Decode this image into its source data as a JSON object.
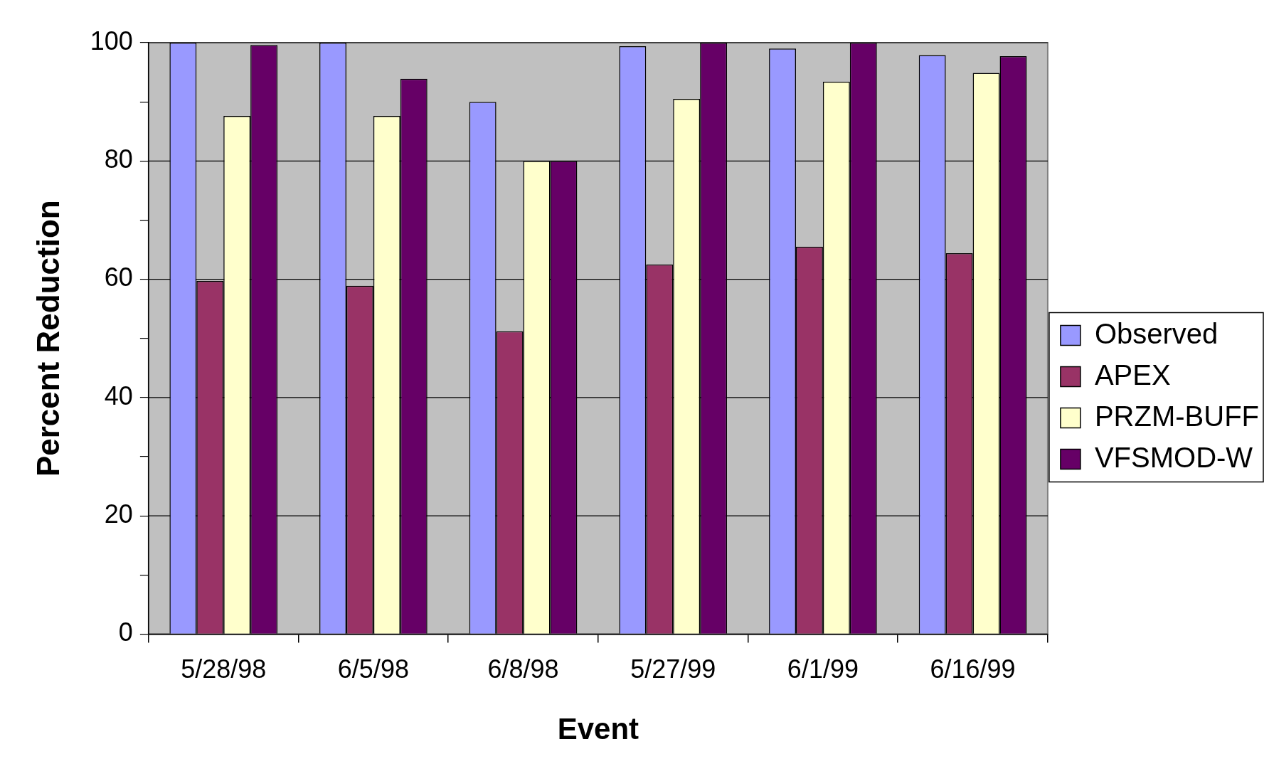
{
  "chart_data": {
    "type": "bar",
    "xlabel": "Event",
    "ylabel": "Percent Reduction",
    "categories": [
      "5/28/98",
      "6/5/98",
      "6/8/98",
      "5/27/99",
      "6/1/99",
      "6/16/99"
    ],
    "series": [
      {
        "name": "Observed",
        "color": "#9999ff",
        "values": [
          100,
          100,
          90,
          99.4,
          99,
          97.9
        ]
      },
      {
        "name": "APEX",
        "color": "#993366",
        "values": [
          59.7,
          58.9,
          51.2,
          62.5,
          65.5,
          64.4
        ]
      },
      {
        "name": "PRZM-BUFF",
        "color": "#ffffcc",
        "values": [
          87.6,
          87.6,
          80,
          90.5,
          93.4,
          94.9
        ]
      },
      {
        "name": "VFSMOD-W",
        "color": "#660066",
        "values": [
          99.6,
          93.9,
          80,
          100,
          100,
          97.7
        ]
      }
    ],
    "ylim": [
      0,
      100
    ],
    "yticks": [
      0,
      {
        "value": 10,
        "label": null
      },
      20,
      {
        "value": 30,
        "label": null
      },
      40,
      {
        "value": 50,
        "label": null
      },
      60,
      {
        "value": 70,
        "label": null
      },
      80,
      {
        "value": 90,
        "label": null
      },
      100
    ],
    "grid": "y",
    "legend": "right"
  }
}
